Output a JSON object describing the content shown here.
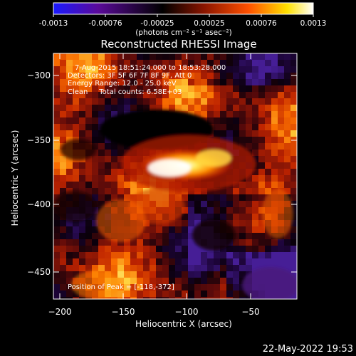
{
  "colorbar": {
    "tick_labels": [
      "-0.0013",
      "-0.00076",
      "-0.00025",
      "0.00025",
      "0.00076",
      "0.0013"
    ],
    "units_label": "(photons cm⁻² s⁻¹ asec⁻²)",
    "colors": [
      "#1a1aff",
      "#5a0a9a",
      "#000000",
      "#8a1500",
      "#ff5000",
      "#ffe100",
      "#ffffff"
    ]
  },
  "title": "Reconstructed RHESSI Image",
  "annotations": [
    "7-Aug-2015 18:51:24.000 to 18:53:28.000",
    "Detectors: 3F 5F 6F 7F 8F 9F, Att 0",
    "Energy Range: 12.0 - 25.0 keV",
    "Clean     Total counts: 6.58E+03"
  ],
  "peak_label": "Position of Peak = [-118,-372]",
  "x_axis": {
    "label": "Heliocentric X (arcsec)",
    "ticks": [
      -200,
      -150,
      -100,
      -50
    ],
    "tick_labels": [
      "−200",
      "−150",
      "−100",
      "−50"
    ],
    "range": [
      -206,
      -14
    ]
  },
  "y_axis": {
    "label": "Heliocentric Y (arcsec)",
    "ticks": [
      -300,
      -350,
      -400,
      -450
    ],
    "tick_labels": [
      "−300",
      "−350",
      "−400",
      "−450"
    ],
    "range": [
      -474,
      -286
    ]
  },
  "timestamp": "22-May-2022 19:53"
}
